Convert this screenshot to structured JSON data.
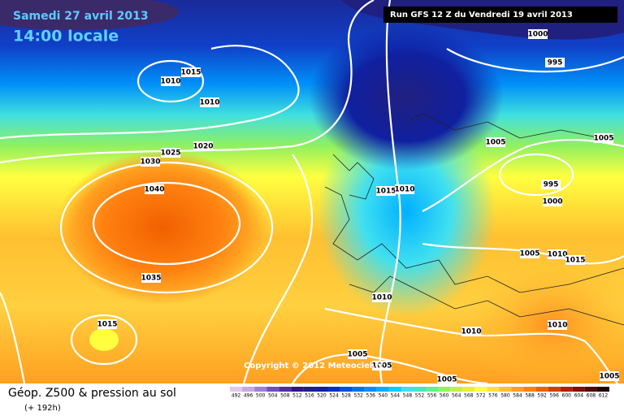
{
  "header": {
    "date": "Samedi 27 avril 2013",
    "time": "14:00 locale",
    "run": "Run GFS 12 Z du Vendredi 19 avril 2013"
  },
  "isobar_labels": [
    1000,
    995,
    1015,
    1010,
    1010,
    1020,
    1025,
    1030,
    1040,
    1005,
    1005,
    995,
    1000,
    1015,
    1010,
    1035,
    1005,
    1010,
    1015,
    1010,
    1015,
    1010,
    1010,
    1005,
    1005,
    1005,
    1005
  ],
  "copyright": "Copyright © 2012 Meteociel.fr",
  "footer": {
    "title": "Géop. Z500 & pression au sol",
    "lead": "(+ 192h)"
  },
  "legend": {
    "levels": [
      492,
      496,
      500,
      504,
      508,
      512,
      516,
      520,
      524,
      528,
      532,
      536,
      540,
      544,
      548,
      552,
      556,
      560,
      564,
      568,
      572,
      576,
      580,
      584,
      588,
      592,
      596,
      600,
      604,
      608,
      612
    ],
    "colors": [
      "#e0c8e8",
      "#c8a8e0",
      "#a080d0",
      "#7050b8",
      "#503098",
      "#301878",
      "#202080",
      "#1020a0",
      "#0030c8",
      "#0050e0",
      "#0070f0",
      "#0090f8",
      "#00b0ff",
      "#00d0ff",
      "#40e0f0",
      "#40e8c0",
      "#60f090",
      "#90f060",
      "#c0f040",
      "#e8f030",
      "#ffff40",
      "#ffe040",
      "#ffc030",
      "#ffa020",
      "#ff8010",
      "#f06000",
      "#d04000",
      "#b02000",
      "#801000",
      "#500800",
      "#200000"
    ]
  }
}
